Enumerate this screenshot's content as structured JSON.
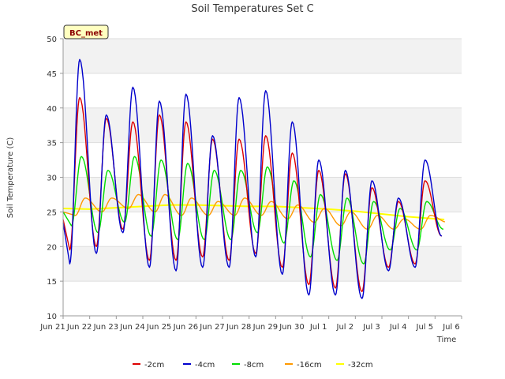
{
  "chart_data": {
    "type": "line",
    "title": "Soil Temperatures Set C",
    "xlabel": "Time",
    "ylabel": "Soil Temperature (C)",
    "badge": "BC_met",
    "x_start": "2024-06-21",
    "x_end": "2024-07-06",
    "xlim": [
      0,
      15
    ],
    "ylim": [
      10,
      50
    ],
    "yticks": [
      10,
      15,
      20,
      25,
      30,
      35,
      40,
      45,
      50
    ],
    "xtick_labels": [
      "Jun 21",
      "Jun 22",
      "Jun 23",
      "Jun 24",
      "Jun 25",
      "Jun 26",
      "Jun 27",
      "Jun 28",
      "Jun 29",
      "Jun 30",
      "Jul 1",
      "Jul 2",
      "Jul 3",
      "Jul 4",
      "Jul 5",
      "Jul 6"
    ],
    "grid": true,
    "legend_position": "bottom",
    "series": [
      {
        "name": "-2cm",
        "color": "#dd0000",
        "peaks": [
          41.5,
          38.5,
          38.0,
          39.0,
          38.0,
          35.5,
          35.5,
          36.0,
          33.5,
          31.0,
          30.5,
          28.5,
          26.5,
          29.5
        ],
        "troughs": [
          19.5,
          20.0,
          22.5,
          18.0,
          18.0,
          18.5,
          18.0,
          19.0,
          17.0,
          14.5,
          14.0,
          13.5,
          17.0,
          17.5,
          21.5
        ]
      },
      {
        "name": "-4cm",
        "color": "#0000cc",
        "peaks": [
          47.0,
          39.0,
          43.0,
          41.0,
          42.0,
          36.0,
          41.5,
          42.5,
          38.0,
          32.5,
          31.0,
          29.5,
          27.0,
          32.5
        ],
        "troughs": [
          17.5,
          19.0,
          22.0,
          17.0,
          16.5,
          17.0,
          17.0,
          18.5,
          16.0,
          13.0,
          13.0,
          12.5,
          16.5,
          17.0,
          21.5
        ]
      },
      {
        "name": "-8cm",
        "color": "#00dd00",
        "peaks": [
          33.0,
          31.0,
          33.0,
          32.5,
          32.0,
          31.0,
          31.0,
          31.5,
          29.5,
          27.5,
          27.0,
          26.5,
          25.5,
          26.5
        ],
        "troughs": [
          23.0,
          22.0,
          23.5,
          21.5,
          21.0,
          21.0,
          21.0,
          22.0,
          20.5,
          18.5,
          18.0,
          17.5,
          19.5,
          19.5,
          22.5
        ]
      },
      {
        "name": "-16cm",
        "color": "#ff9900",
        "peaks": [
          27.0,
          27.0,
          27.5,
          27.5,
          27.0,
          26.5,
          27.0,
          26.5,
          26.0,
          25.5,
          25.0,
          24.5,
          24.0,
          24.5
        ],
        "troughs": [
          24.5,
          25.0,
          25.5,
          25.0,
          24.5,
          24.5,
          24.5,
          24.5,
          24.0,
          23.5,
          23.0,
          22.5,
          22.5,
          22.5,
          23.5
        ]
      },
      {
        "name": "-32cm",
        "color": "#ffff00",
        "points": [
          [
            0,
            25.5
          ],
          [
            1,
            25.4
          ],
          [
            2,
            25.6
          ],
          [
            3,
            25.8
          ],
          [
            4,
            26.0
          ],
          [
            5,
            26.0
          ],
          [
            6,
            25.9
          ],
          [
            7,
            25.8
          ],
          [
            8,
            25.8
          ],
          [
            9,
            25.6
          ],
          [
            10,
            25.4
          ],
          [
            11,
            25.1
          ],
          [
            12,
            24.7
          ],
          [
            13,
            24.3
          ],
          [
            14,
            24.0
          ],
          [
            14.35,
            23.9
          ]
        ]
      }
    ]
  }
}
